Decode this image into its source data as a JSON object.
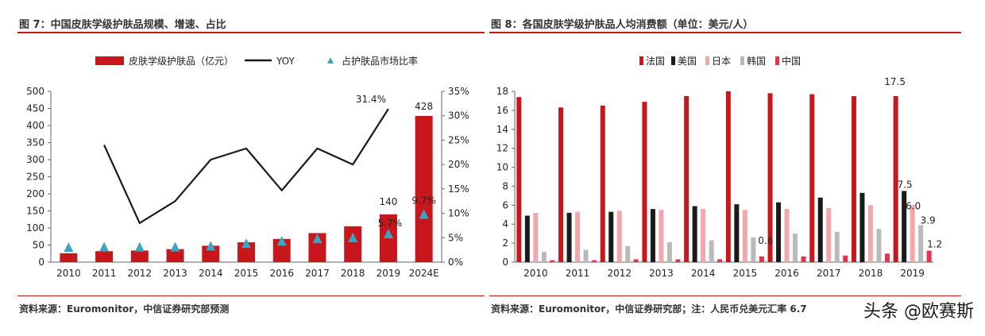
{
  "left_panel": {
    "title": "图 7：中国皮肤学级护肤品规模、增速、占比",
    "source": "资料来源：Euromonitor，中信证券研究部预测"
  },
  "right_panel": {
    "title": "图 8：各国皮肤学级护肤品人均消费额（单位：美元/人）",
    "source": "资料来源：Euromonitor，中信证券研究部；注：人民币兑美元汇率 6.7"
  },
  "watermark": "头条 @欧赛斯",
  "colors": {
    "red": "#c8161d",
    "black": "#1a1a1a",
    "teal": "#3aa6c2",
    "japan": "#f2a7aa",
    "korea": "#b9b9b9",
    "china": "#e8314a"
  },
  "chart_data": [
    {
      "type": "bar",
      "categories": [
        "2010",
        "2011",
        "2012",
        "2013",
        "2014",
        "2015",
        "2016",
        "2017",
        "2018",
        "2019",
        "2024E"
      ],
      "series": [
        {
          "name": "皮肤学级护肤品（亿元）",
          "kind": "bar",
          "axis": "left",
          "values": [
            26,
            32,
            34,
            38,
            48,
            58,
            68,
            85,
            105,
            140,
            428
          ]
        },
        {
          "name": "YOY",
          "kind": "line",
          "axis": "right",
          "values": [
            null,
            24.0,
            8.0,
            12.5,
            21.0,
            23.3,
            14.7,
            23.3,
            20.0,
            31.4,
            null
          ]
        },
        {
          "name": "占护肤品市场比率",
          "kind": "marker",
          "axis": "right",
          "values": [
            2.9,
            3.0,
            3.0,
            3.0,
            3.2,
            3.7,
            4.2,
            4.7,
            4.9,
            5.7,
            9.7
          ]
        }
      ],
      "left_axis": {
        "ylim": [
          0,
          500
        ],
        "ticks": [
          "0",
          "50",
          "100",
          "150",
          "200",
          "250",
          "300",
          "350",
          "400",
          "450",
          "500"
        ]
      },
      "right_axis": {
        "ylim": [
          0,
          35
        ],
        "ticks": [
          "0%",
          "5%",
          "10%",
          "15%",
          "20%",
          "25%",
          "30%",
          "35%"
        ]
      },
      "annotations": {
        "yoy_2019": "31.4%",
        "bar_2019": "140",
        "bar_2024E": "428",
        "ratio_2019": "5.7%",
        "ratio_2024E": "9.7%"
      },
      "legend_position": "top",
      "grid": false
    },
    {
      "type": "bar",
      "categories": [
        "2010",
        "2011",
        "2012",
        "2013",
        "2014",
        "2015",
        "2016",
        "2017",
        "2018",
        "2019"
      ],
      "series": [
        {
          "name": "法国",
          "values": [
            17.4,
            16.3,
            16.5,
            16.9,
            17.5,
            18.0,
            17.8,
            17.7,
            17.5,
            17.5
          ]
        },
        {
          "name": "美国",
          "values": [
            4.9,
            5.2,
            5.3,
            5.6,
            5.9,
            6.1,
            6.3,
            6.8,
            7.3,
            7.5
          ]
        },
        {
          "name": "日本",
          "values": [
            5.2,
            5.3,
            5.4,
            5.5,
            5.6,
            5.5,
            5.6,
            5.7,
            6.0,
            6.0
          ]
        },
        {
          "name": "韩国",
          "values": [
            1.1,
            1.3,
            1.7,
            2.1,
            2.3,
            2.6,
            3.0,
            3.2,
            3.5,
            3.9
          ]
        },
        {
          "name": "中国",
          "values": [
            0.2,
            0.2,
            0.3,
            0.3,
            0.3,
            0.6,
            0.6,
            0.7,
            0.9,
            1.2
          ]
        }
      ],
      "ylim": [
        0,
        18
      ],
      "ticks": [
        "0",
        "2",
        "4",
        "6",
        "8",
        "10",
        "12",
        "14",
        "16",
        "18"
      ],
      "annotations": {
        "france_2019": "17.5",
        "usa_2019": "7.5",
        "japan_2019": "6.0",
        "korea_2019": "3.9",
        "china_2019": "1.2",
        "china_2015": "0.6"
      },
      "legend_position": "top",
      "grid": false
    }
  ]
}
